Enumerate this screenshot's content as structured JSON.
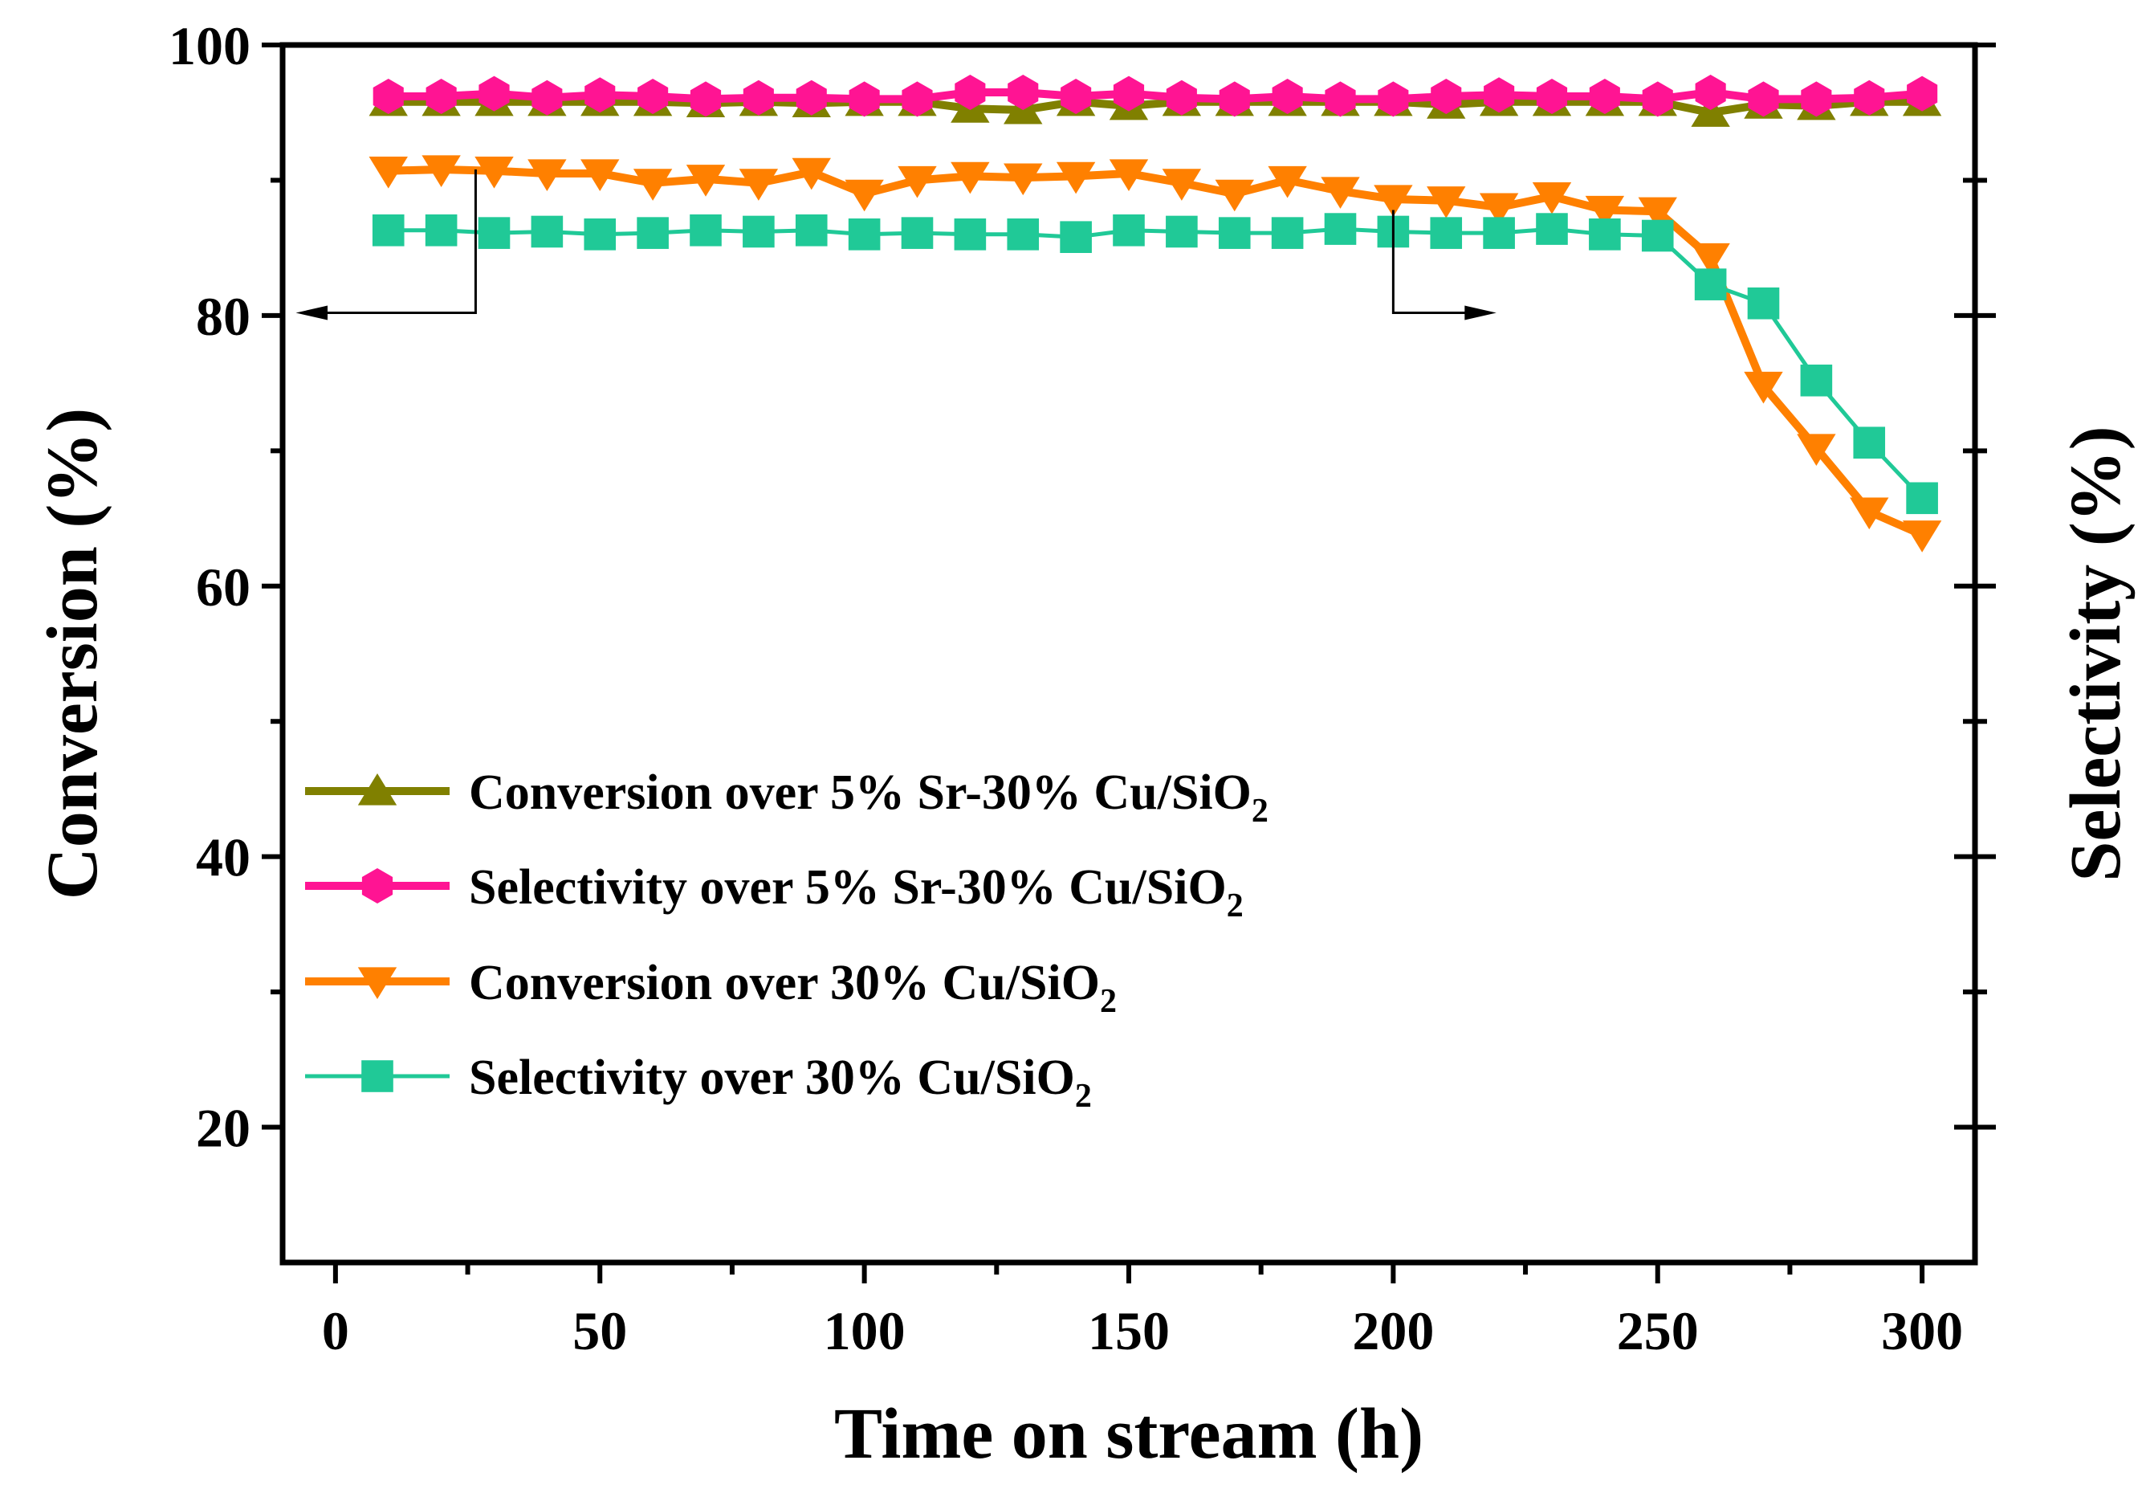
{
  "chart_data": {
    "type": "line",
    "xlabel": "Time on stream (h)",
    "ylabel": "Conversion (%)",
    "y2label": "Selectivity (%)",
    "xlim": [
      -10,
      310
    ],
    "ylim": [
      10,
      100
    ],
    "xticks": [
      0,
      50,
      100,
      150,
      200,
      250,
      300
    ],
    "yticks": [
      20,
      40,
      60,
      80,
      100
    ],
    "legend_placement": "center-left",
    "grid": false,
    "x": [
      10,
      20,
      30,
      40,
      50,
      60,
      70,
      80,
      90,
      100,
      110,
      120,
      130,
      140,
      150,
      160,
      170,
      180,
      190,
      200,
      210,
      220,
      230,
      240,
      250,
      260,
      270,
      280,
      290,
      300
    ],
    "series": [
      {
        "name": "Conversion over 5% Sr-30% Cu/SiO",
        "name_sub": "2",
        "color": "#808000",
        "marker": "triangle-up",
        "line_width": "thick",
        "values": [
          95.8,
          95.8,
          95.8,
          95.8,
          95.8,
          95.8,
          95.7,
          95.8,
          95.7,
          95.8,
          95.8,
          95.3,
          95.2,
          95.8,
          95.5,
          95.8,
          95.8,
          95.8,
          95.8,
          95.8,
          95.6,
          95.8,
          95.8,
          95.8,
          95.8,
          95.0,
          95.6,
          95.5,
          95.8,
          95.8
        ]
      },
      {
        "name": "Selectivity over 5% Sr-30% Cu/SiO",
        "name_sub": "2",
        "color": "#ff1493",
        "marker": "hexagon",
        "line_width": "thick",
        "values": [
          96.2,
          96.2,
          96.4,
          96.1,
          96.3,
          96.2,
          96.0,
          96.1,
          96.1,
          96.0,
          96.0,
          96.5,
          96.5,
          96.2,
          96.4,
          96.1,
          96.0,
          96.2,
          96.0,
          96.0,
          96.2,
          96.3,
          96.2,
          96.2,
          96.0,
          96.5,
          96.0,
          96.0,
          96.1,
          96.4
        ]
      },
      {
        "name": "Conversion over 30% Cu/SiO",
        "name_sub": "2",
        "color": "#ff8000",
        "marker": "triangle-down",
        "line_width": "thick",
        "values": [
          90.7,
          90.8,
          90.7,
          90.5,
          90.5,
          89.8,
          90.1,
          89.8,
          90.6,
          89.0,
          90.0,
          90.3,
          90.2,
          90.3,
          90.5,
          89.8,
          89.0,
          90.0,
          89.2,
          88.6,
          88.5,
          88.0,
          88.8,
          87.8,
          87.7,
          84.3,
          74.8,
          70.2,
          65.5,
          63.8
        ]
      },
      {
        "name": "Selectivity over 30% Cu/SiO",
        "name_sub": "2",
        "color": "#20c997",
        "marker": "square",
        "line_width": "thin",
        "values": [
          86.3,
          86.3,
          86.1,
          86.2,
          86.0,
          86.1,
          86.3,
          86.2,
          86.3,
          86.0,
          86.1,
          86.0,
          86.0,
          85.8,
          86.3,
          86.2,
          86.1,
          86.1,
          86.4,
          86.2,
          86.1,
          86.1,
          86.4,
          86.0,
          85.9,
          82.3,
          80.9,
          75.2,
          70.6,
          66.5
        ]
      }
    ],
    "annotations": [
      {
        "type": "arrow",
        "meaning": "series near x=10-30 refer to left axis (Conversion)",
        "direction": "left"
      },
      {
        "type": "arrow",
        "meaning": "series near x=200 refer to right axis (Selectivity)",
        "direction": "right"
      }
    ]
  }
}
